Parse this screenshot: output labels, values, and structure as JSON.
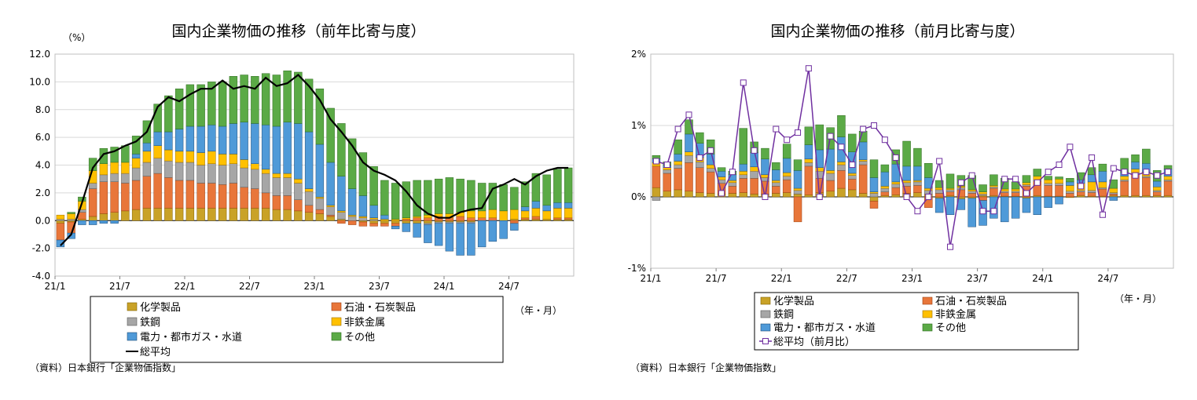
{
  "colors": {
    "chemical": "#C9A227",
    "petroleum": "#E8763A",
    "steel": "#A6A6A6",
    "nonferrous": "#FFC000",
    "electricity": "#4F9AD8",
    "other": "#5BAA46",
    "total_left": "#000000",
    "total_right": "#7030A0",
    "grid": "#D9D9D9"
  },
  "chart_data": [
    {
      "type": "bar",
      "stacked": true,
      "title": "国内企業物価の推移（前年比寄与度）",
      "ylabel": "（%）",
      "xlabel": "（年・月）",
      "ylim": [
        -4.0,
        12.0
      ],
      "yticks": [
        "12.0",
        "10.0",
        "8.0",
        "6.0",
        "4.0",
        "2.0",
        "0.0",
        "-2.0",
        "-4.0"
      ],
      "xticks": [
        "21/1",
        "21/7",
        "22/1",
        "22/7",
        "23/1",
        "23/7",
        "24/1",
        "24/7"
      ],
      "grid": true,
      "categories": [
        "21/1",
        "21/2",
        "21/3",
        "21/4",
        "21/5",
        "21/6",
        "21/7",
        "21/8",
        "21/9",
        "21/10",
        "21/11",
        "21/12",
        "22/1",
        "22/2",
        "22/3",
        "22/4",
        "22/5",
        "22/6",
        "22/7",
        "22/8",
        "22/9",
        "22/10",
        "22/11",
        "22/12",
        "23/1",
        "23/2",
        "23/3",
        "23/4",
        "23/5",
        "23/6",
        "23/7",
        "23/8",
        "23/9",
        "23/10",
        "23/11",
        "23/12",
        "24/1",
        "24/2",
        "24/3",
        "24/4",
        "24/5",
        "24/6",
        "24/7",
        "24/8",
        "24/9",
        "24/10",
        "24/11",
        "24/12"
      ],
      "series": [
        {
          "name": "化学製品",
          "values": [
            -0.2,
            -0.1,
            0.1,
            0.3,
            0.5,
            0.6,
            0.7,
            0.8,
            0.9,
            0.9,
            0.9,
            0.9,
            0.9,
            0.9,
            0.9,
            0.9,
            0.9,
            0.9,
            0.9,
            0.9,
            0.8,
            0.8,
            0.7,
            0.6,
            0.5,
            0.3,
            0.1,
            0.0,
            -0.1,
            -0.2,
            -0.2,
            -0.2,
            -0.2,
            -0.2,
            -0.2,
            -0.1,
            -0.1,
            -0.1,
            -0.1,
            0.0,
            0.0,
            0.0,
            0.1,
            0.1,
            0.1,
            0.1,
            0.1,
            0.1
          ]
        },
        {
          "name": "石油・石炭製品",
          "values": [
            -1.2,
            -0.8,
            0.5,
            2.0,
            2.3,
            2.2,
            2.0,
            2.1,
            2.3,
            2.5,
            2.2,
            2.0,
            2.0,
            1.8,
            1.8,
            1.7,
            1.8,
            1.5,
            1.4,
            1.1,
            1.0,
            1.0,
            0.8,
            0.5,
            0.3,
            0.1,
            -0.2,
            -0.3,
            -0.3,
            -0.2,
            -0.2,
            -0.2,
            0.1,
            0.2,
            0.2,
            0.3,
            0.2,
            0.3,
            0.2,
            0.2,
            0.2,
            0.0,
            -0.2,
            0.1,
            0.2,
            0.0,
            0.1,
            0.1
          ]
        },
        {
          "name": "鉄鋼",
          "values": [
            0.1,
            0.1,
            0.2,
            0.4,
            0.5,
            0.6,
            0.7,
            0.9,
            1.0,
            1.1,
            1.2,
            1.3,
            1.3,
            1.3,
            1.4,
            1.4,
            1.4,
            1.4,
            1.4,
            1.4,
            1.3,
            1.3,
            1.2,
            1.0,
            0.8,
            0.6,
            0.5,
            0.3,
            0.2,
            0.1,
            0.0,
            0.0,
            0.0,
            0.0,
            -0.1,
            -0.1,
            -0.1,
            -0.1,
            -0.1,
            0.0,
            0.0,
            0.0,
            0.0,
            0.0,
            0.0,
            0.0,
            0.0,
            0.0
          ]
        },
        {
          "name": "非鉄金属",
          "values": [
            0.3,
            0.4,
            0.6,
            0.9,
            0.8,
            0.8,
            0.8,
            0.7,
            0.8,
            0.9,
            0.8,
            0.8,
            0.8,
            0.9,
            0.9,
            0.8,
            0.7,
            0.6,
            0.4,
            0.3,
            0.3,
            0.3,
            0.3,
            0.2,
            0.1,
            0.1,
            0.1,
            0.1,
            0.1,
            0.1,
            0.1,
            0.1,
            0.1,
            0.1,
            0.2,
            0.2,
            0.3,
            0.3,
            0.5,
            0.5,
            0.6,
            0.7,
            0.7,
            0.5,
            0.6,
            0.6,
            0.7,
            0.7
          ]
        },
        {
          "name": "電力・都市ガス・水道",
          "values": [
            -0.5,
            -0.4,
            -0.3,
            -0.3,
            -0.2,
            -0.2,
            0.0,
            0.3,
            0.6,
            1.0,
            1.3,
            1.6,
            1.8,
            1.9,
            1.9,
            2.0,
            2.2,
            2.7,
            2.9,
            3.2,
            3.4,
            3.7,
            4.0,
            4.1,
            3.8,
            3.1,
            2.5,
            1.9,
            1.5,
            0.9,
            0.3,
            -0.2,
            -0.6,
            -1.0,
            -1.3,
            -1.6,
            -2.0,
            -2.3,
            -2.3,
            -1.9,
            -1.5,
            -1.3,
            -0.5,
            0.3,
            0.5,
            0.4,
            0.4,
            0.4
          ]
        },
        {
          "name": "その他",
          "values": [
            0.0,
            0.1,
            0.3,
            0.9,
            1.1,
            1.1,
            1.2,
            1.3,
            1.6,
            2.0,
            2.6,
            2.9,
            3.0,
            3.0,
            3.1,
            3.2,
            3.4,
            3.4,
            3.4,
            3.7,
            3.7,
            3.7,
            3.7,
            3.8,
            4.0,
            3.9,
            3.8,
            3.6,
            3.1,
            2.8,
            2.5,
            2.6,
            2.6,
            2.6,
            2.5,
            2.5,
            2.6,
            2.4,
            2.2,
            2.0,
            1.9,
            1.9,
            1.6,
            1.8,
            2.0,
            2.2,
            2.4,
            2.5
          ]
        }
      ],
      "total": {
        "name": "総平均",
        "values": [
          -1.8,
          -1.0,
          1.3,
          3.8,
          4.8,
          5.0,
          5.4,
          5.7,
          6.4,
          8.2,
          8.9,
          8.6,
          9.1,
          9.5,
          9.5,
          10.1,
          9.5,
          9.7,
          9.5,
          10.3,
          9.7,
          9.9,
          10.5,
          9.7,
          8.7,
          7.3,
          6.4,
          5.4,
          4.2,
          3.6,
          3.3,
          2.9,
          2.1,
          1.1,
          0.5,
          0.2,
          0.2,
          0.6,
          0.8,
          0.9,
          2.3,
          2.6,
          3.0,
          2.6,
          3.2,
          3.6,
          3.8,
          3.8
        ]
      }
    },
    {
      "type": "bar",
      "stacked": true,
      "title": "国内企業物価の推移（前月比寄与度）",
      "xlabel": "（年・月）",
      "ylim": [
        -1.0,
        2.0
      ],
      "yticks": [
        "2%",
        "1%",
        "0%",
        "-1%"
      ],
      "xticks": [
        "21/1",
        "21/7",
        "22/1",
        "22/7",
        "23/1",
        "23/7",
        "24/1",
        "24/7"
      ],
      "grid": true,
      "categories": [
        "21/1",
        "21/2",
        "21/3",
        "21/4",
        "21/5",
        "21/6",
        "21/7",
        "21/8",
        "21/9",
        "21/10",
        "21/11",
        "21/12",
        "22/1",
        "22/2",
        "22/3",
        "22/4",
        "22/5",
        "22/6",
        "22/7",
        "22/8",
        "22/9",
        "22/10",
        "22/11",
        "22/12",
        "23/1",
        "23/2",
        "23/3",
        "23/4",
        "23/5",
        "23/6",
        "23/7",
        "23/8",
        "23/9",
        "23/10",
        "23/11",
        "23/12",
        "24/1",
        "24/2",
        "24/3",
        "24/4",
        "24/5",
        "24/6",
        "24/7",
        "24/8",
        "24/9",
        "24/10",
        "24/11",
        "24/12"
      ],
      "series": [
        {
          "name": "化学製品",
          "values": [
            0.13,
            0.08,
            0.1,
            0.08,
            0.06,
            0.05,
            0.04,
            0.05,
            0.06,
            0.04,
            0.04,
            0.05,
            0.06,
            0.04,
            0.03,
            0.06,
            0.08,
            0.12,
            0.1,
            0.05,
            -0.06,
            0.02,
            0.03,
            0.05,
            0.06,
            0.04,
            -0.02,
            0.02,
            -0.03,
            -0.02,
            0.02,
            0.02,
            0.01,
            0.01,
            -0.02,
            0.02,
            0.01,
            0.01,
            -0.01,
            0.02,
            0.01,
            0.01,
            0.02,
            0.02,
            0.02,
            0.02,
            0.02,
            0.02
          ]
        },
        {
          "name": "石油・石炭製品",
          "values": [
            0.3,
            0.25,
            0.3,
            0.4,
            0.35,
            0.3,
            0.15,
            0.1,
            0.2,
            0.22,
            0.18,
            0.1,
            0.18,
            -0.35,
            0.4,
            0.2,
            0.15,
            0.25,
            0.15,
            0.4,
            -0.1,
            0.05,
            0.1,
            0.1,
            0.1,
            -0.15,
            0.05,
            0.05,
            0.1,
            0.05,
            -0.05,
            0.1,
            0.05,
            0.05,
            0.15,
            0.2,
            0.15,
            0.15,
            0.05,
            0.05,
            0.05,
            0.1,
            0.02,
            0.2,
            0.3,
            0.25,
            0.05,
            0.2
          ]
        },
        {
          "name": "鉄鋼",
          "values": [
            -0.05,
            0.05,
            0.05,
            0.1,
            0.08,
            0.05,
            0.05,
            0.05,
            0.05,
            0.1,
            0.05,
            0.05,
            0.05,
            0.05,
            0.05,
            0.1,
            0.1,
            0.08,
            0.05,
            0.05,
            0.05,
            0.05,
            0.05,
            0.05,
            0.05,
            0.05,
            0.05,
            0.03,
            0.03,
            0.03,
            0.02,
            0.02,
            0.02,
            0.02,
            0.02,
            0.02,
            0.03,
            0.03,
            0.03,
            0.02,
            0.03,
            0.02,
            0.02,
            0.02,
            0.02,
            0.02,
            0.02,
            0.02
          ]
        },
        {
          "name": "非鉄金属",
          "values": [
            0.05,
            0.03,
            0.05,
            0.05,
            0.06,
            0.05,
            0.04,
            0.03,
            0.05,
            0.06,
            0.04,
            0.03,
            0.05,
            0.03,
            0.05,
            0.05,
            0.04,
            0.04,
            0.03,
            0.02,
            0.02,
            0.03,
            0.03,
            0.03,
            0.02,
            0.03,
            0.03,
            0.02,
            0.02,
            0.02,
            0.03,
            0.02,
            0.03,
            0.03,
            0.03,
            0.05,
            0.05,
            0.06,
            0.08,
            0.1,
            0.12,
            0.08,
            0.06,
            0.05,
            0.05,
            0.06,
            0.05,
            0.05
          ]
        },
        {
          "name": "電力・都市ガス・水道",
          "values": [
            0.05,
            0.03,
            0.1,
            0.25,
            0.2,
            0.15,
            0.08,
            0.08,
            0.1,
            0.2,
            0.22,
            0.15,
            0.2,
            0.25,
            0.2,
            0.25,
            0.3,
            0.35,
            0.3,
            0.25,
            0.2,
            0.2,
            0.25,
            0.2,
            0.2,
            0.15,
            -0.2,
            -0.25,
            -0.15,
            -0.4,
            -0.35,
            -0.3,
            -0.35,
            -0.3,
            -0.2,
            -0.25,
            -0.15,
            -0.1,
            0.05,
            0.05,
            0.1,
            0.15,
            -0.05,
            0.05,
            0.1,
            0.12,
            0.08,
            0.1
          ]
        },
        {
          "name": "その他",
          "values": [
            0.05,
            0.05,
            0.2,
            0.2,
            0.15,
            0.2,
            0.05,
            0.05,
            0.5,
            0.15,
            0.15,
            0.1,
            0.2,
            0.15,
            0.25,
            0.35,
            0.3,
            0.3,
            0.25,
            0.15,
            0.25,
            0.1,
            0.2,
            0.35,
            0.25,
            0.2,
            0.1,
            0.2,
            0.15,
            0.2,
            0.1,
            0.15,
            0.15,
            0.1,
            0.1,
            0.1,
            0.05,
            0.03,
            0.05,
            0.1,
            0.1,
            0.1,
            0.12,
            0.2,
            0.1,
            0.2,
            0.15,
            0.05
          ]
        }
      ],
      "total": {
        "name": "総平均（前月比）",
        "values": [
          0.5,
          0.45,
          0.95,
          1.15,
          0.55,
          0.65,
          0.05,
          0.35,
          1.6,
          0.65,
          0.0,
          0.95,
          0.8,
          0.9,
          1.8,
          0.0,
          0.85,
          0.7,
          0.45,
          0.95,
          1.0,
          0.8,
          0.55,
          0.0,
          -0.2,
          0.0,
          0.5,
          -0.7,
          0.2,
          0.3,
          -0.2,
          -0.2,
          0.25,
          0.25,
          0.05,
          0.2,
          0.35,
          0.45,
          0.7,
          0.15,
          0.55,
          -0.25,
          0.4,
          0.35,
          0.3,
          0.35,
          0.3,
          0.35
        ]
      }
    }
  ],
  "left_panel": {
    "title": "国内企業物価の推移（前年比寄与度）",
    "unit": "（%）",
    "xunit": "（年・月）",
    "legend": [
      "化学製品",
      "石油・石炭製品",
      "鉄鋼",
      "非鉄金属",
      "電力・都市ガス・水道",
      "その他",
      "総平均"
    ],
    "source": "（資料）日本銀行「企業物価指数」"
  },
  "right_panel": {
    "title": "国内企業物価の推移（前月比寄与度）",
    "xunit": "（年・月）",
    "legend": [
      "化学製品",
      "石油・石炭製品",
      "鉄鋼",
      "非鉄金属",
      "電力・都市ガス・水道",
      "その他",
      "総平均（前月比）"
    ],
    "source": "（資料）日本銀行「企業物価指数」"
  }
}
